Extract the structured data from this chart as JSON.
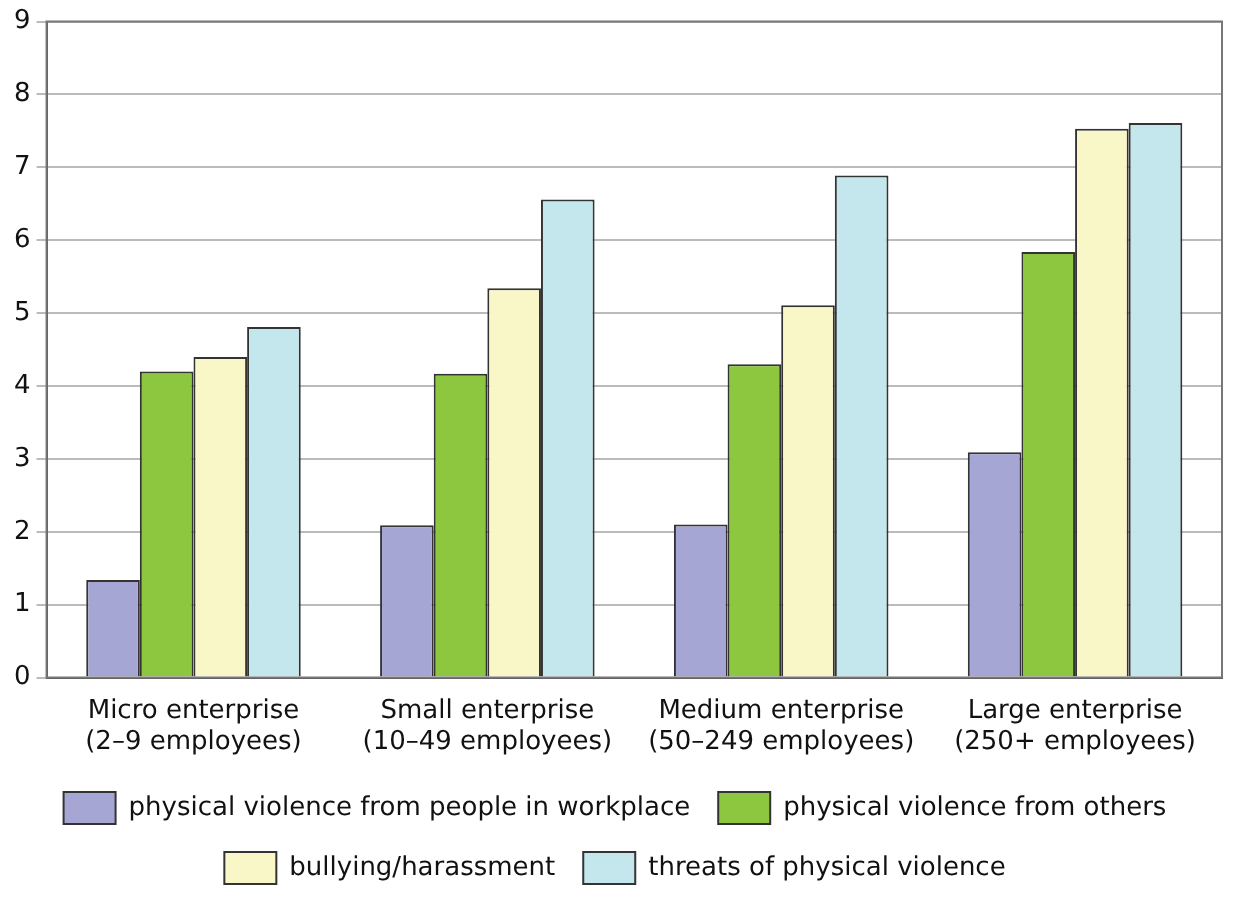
{
  "chart_data": {
    "type": "bar",
    "categories": [
      "Micro enterprise\n(2–9 employees)",
      "Small enterprise\n(10–49 employees)",
      "Medium enterprise\n(50–249 employees)",
      "Large enterprise\n(250+ employees)"
    ],
    "series": [
      {
        "name": "physical violence from people in workplace",
        "color": "#a5a6d3",
        "values": [
          1.34,
          2.09,
          2.1,
          3.09
        ]
      },
      {
        "name": "physical violence from others",
        "color": "#8dc63f",
        "values": [
          4.2,
          4.17,
          4.3,
          5.84
        ]
      },
      {
        "name": "bullying/harassment",
        "color": "#f9f7c8",
        "values": [
          4.4,
          5.34,
          5.11,
          7.53
        ]
      },
      {
        "name": "threats of physical violence",
        "color": "#c4e7ee",
        "values": [
          4.81,
          6.56,
          6.89,
          7.61
        ]
      }
    ],
    "ylim": [
      0,
      9
    ],
    "yticks": [
      0,
      1,
      2,
      3,
      4,
      5,
      6,
      7,
      8,
      9
    ],
    "grid": "y",
    "legend": "bottom"
  }
}
